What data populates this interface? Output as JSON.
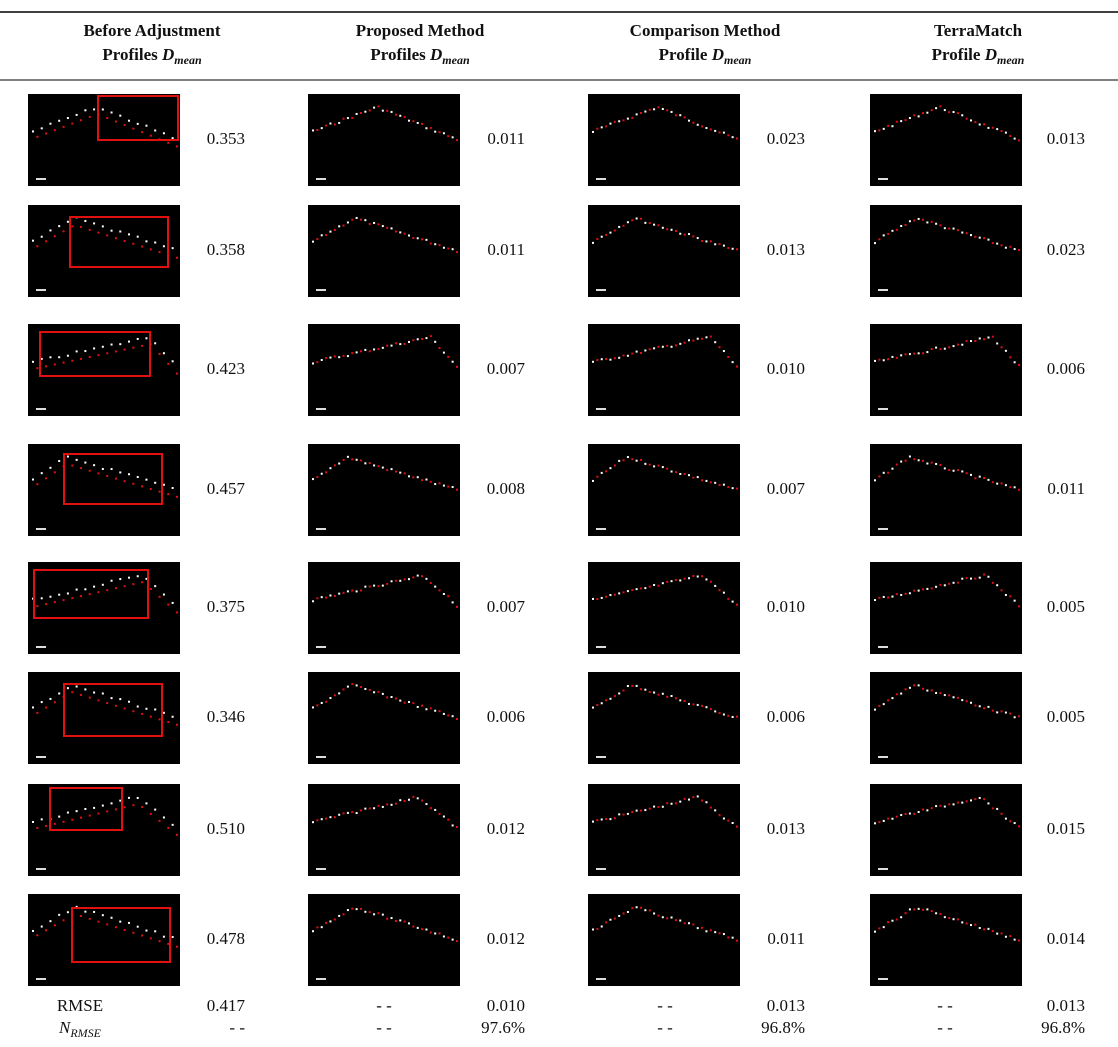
{
  "header": {
    "columns": [
      {
        "title": "Before Adjustment",
        "label": "Profiles",
        "symbol": "D",
        "subscript": "mean"
      },
      {
        "title": "Proposed Method",
        "label": "Profiles",
        "symbol": "D",
        "subscript": "mean"
      },
      {
        "title": "Comparison Method",
        "label": "Profile",
        "symbol": "D",
        "subscript": "mean"
      },
      {
        "title": "TerraMatch",
        "label": "Profile",
        "symbol": "D",
        "subscript": "mean"
      }
    ]
  },
  "table": {
    "rows": [
      [
        "0.353",
        "0.011",
        "0.023",
        "0.013"
      ],
      [
        "0.358",
        "0.011",
        "0.013",
        "0.023"
      ],
      [
        "0.423",
        "0.007",
        "0.010",
        "0.006"
      ],
      [
        "0.457",
        "0.008",
        "0.007",
        "0.011"
      ],
      [
        "0.375",
        "0.007",
        "0.010",
        "0.005"
      ],
      [
        "0.346",
        "0.006",
        "0.006",
        "0.005"
      ],
      [
        "0.510",
        "0.012",
        "0.013",
        "0.015"
      ],
      [
        "0.478",
        "0.012",
        "0.011",
        "0.014"
      ]
    ]
  },
  "summary": [
    {
      "label": "RMSE",
      "cells": [
        "0.417",
        "- -",
        "0.010",
        "- -",
        "0.013",
        "- -",
        "0.013"
      ]
    },
    {
      "label": "N",
      "label_subscript": "RMSE",
      "cells": [
        "- -",
        "- -",
        "97.6%",
        "- -",
        "96.8%",
        "- -",
        "96.8%"
      ]
    }
  ]
}
